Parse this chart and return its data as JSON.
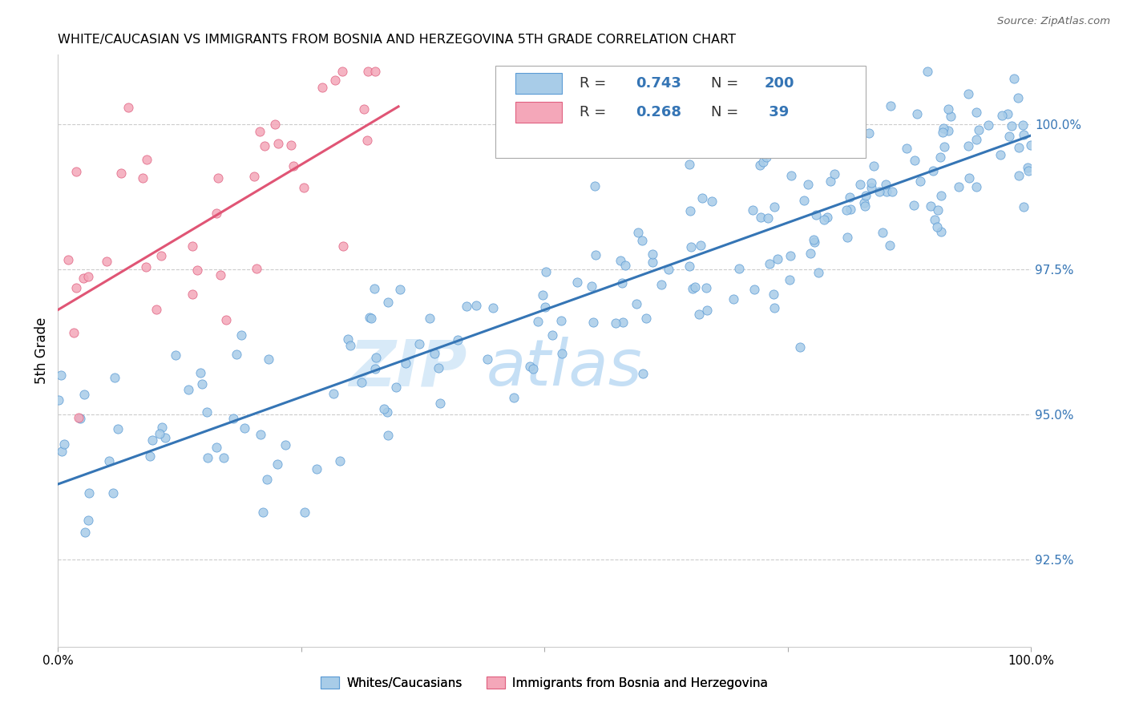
{
  "title": "WHITE/CAUCASIAN VS IMMIGRANTS FROM BOSNIA AND HERZEGOVINA 5TH GRADE CORRELATION CHART",
  "source": "Source: ZipAtlas.com",
  "ylabel": "5th Grade",
  "right_yticks": [
    92.5,
    95.0,
    97.5,
    100.0
  ],
  "right_yticklabels": [
    "92.5%",
    "95.0%",
    "97.5%",
    "100.0%"
  ],
  "blue_R": 0.743,
  "blue_N": 200,
  "pink_R": 0.268,
  "pink_N": 39,
  "blue_color": "#a8cce8",
  "pink_color": "#f4a7b9",
  "blue_edge_color": "#5b9bd5",
  "pink_edge_color": "#e06080",
  "blue_line_color": "#3575b5",
  "pink_line_color": "#e05575",
  "watermark_zip": "ZIP",
  "watermark_atlas": "atlas",
  "seed": 12,
  "xlim": [
    0.0,
    100.0
  ],
  "ylim": [
    91.0,
    101.2
  ],
  "blue_line_x": [
    0.0,
    100.0
  ],
  "blue_line_y": [
    93.8,
    99.8
  ],
  "pink_line_x": [
    0.0,
    35.0
  ],
  "pink_line_y": [
    96.8,
    100.3
  ]
}
